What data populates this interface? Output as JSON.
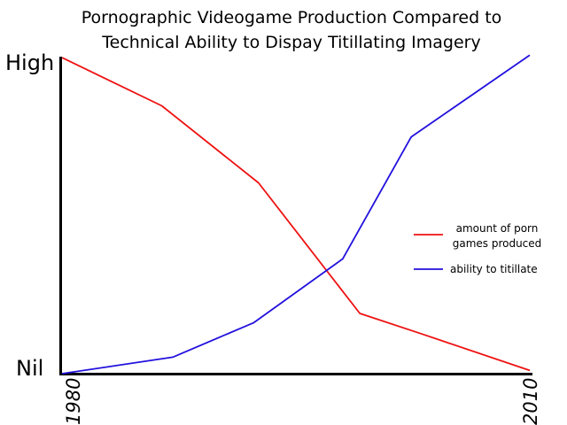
{
  "chart_data": {
    "type": "line",
    "title_lines": [
      "Pornographic Videogame Production Compared to",
      "Technical Ability to Dispay Titillating Imagery"
    ],
    "y_tick_labels": [
      "Nil",
      "High"
    ],
    "y_tick_values": [
      0,
      1
    ],
    "ylim": [
      0,
      1
    ],
    "x_tick_labels": [
      "1980",
      "2010"
    ],
    "xlim": [
      1980,
      2010
    ],
    "grid": false,
    "legend_position": "right",
    "series": [
      {
        "name_lines": [
          "amount of porn",
          "games produced"
        ],
        "color": "#ee1111",
        "x": [
          1980,
          1986.4,
          1992.6,
          1999.1,
          2003.1,
          2010
        ],
        "y": [
          0.997,
          0.845,
          0.602,
          0.19,
          0.125,
          0.01
        ]
      },
      {
        "name_lines": [
          "ability to titillate"
        ],
        "color": "#2211dd",
        "x": [
          1980,
          1987.1,
          1992.3,
          1998.0,
          2002.4,
          2010
        ],
        "y": [
          0.0,
          0.052,
          0.161,
          0.362,
          0.747,
          1.005
        ]
      }
    ]
  }
}
